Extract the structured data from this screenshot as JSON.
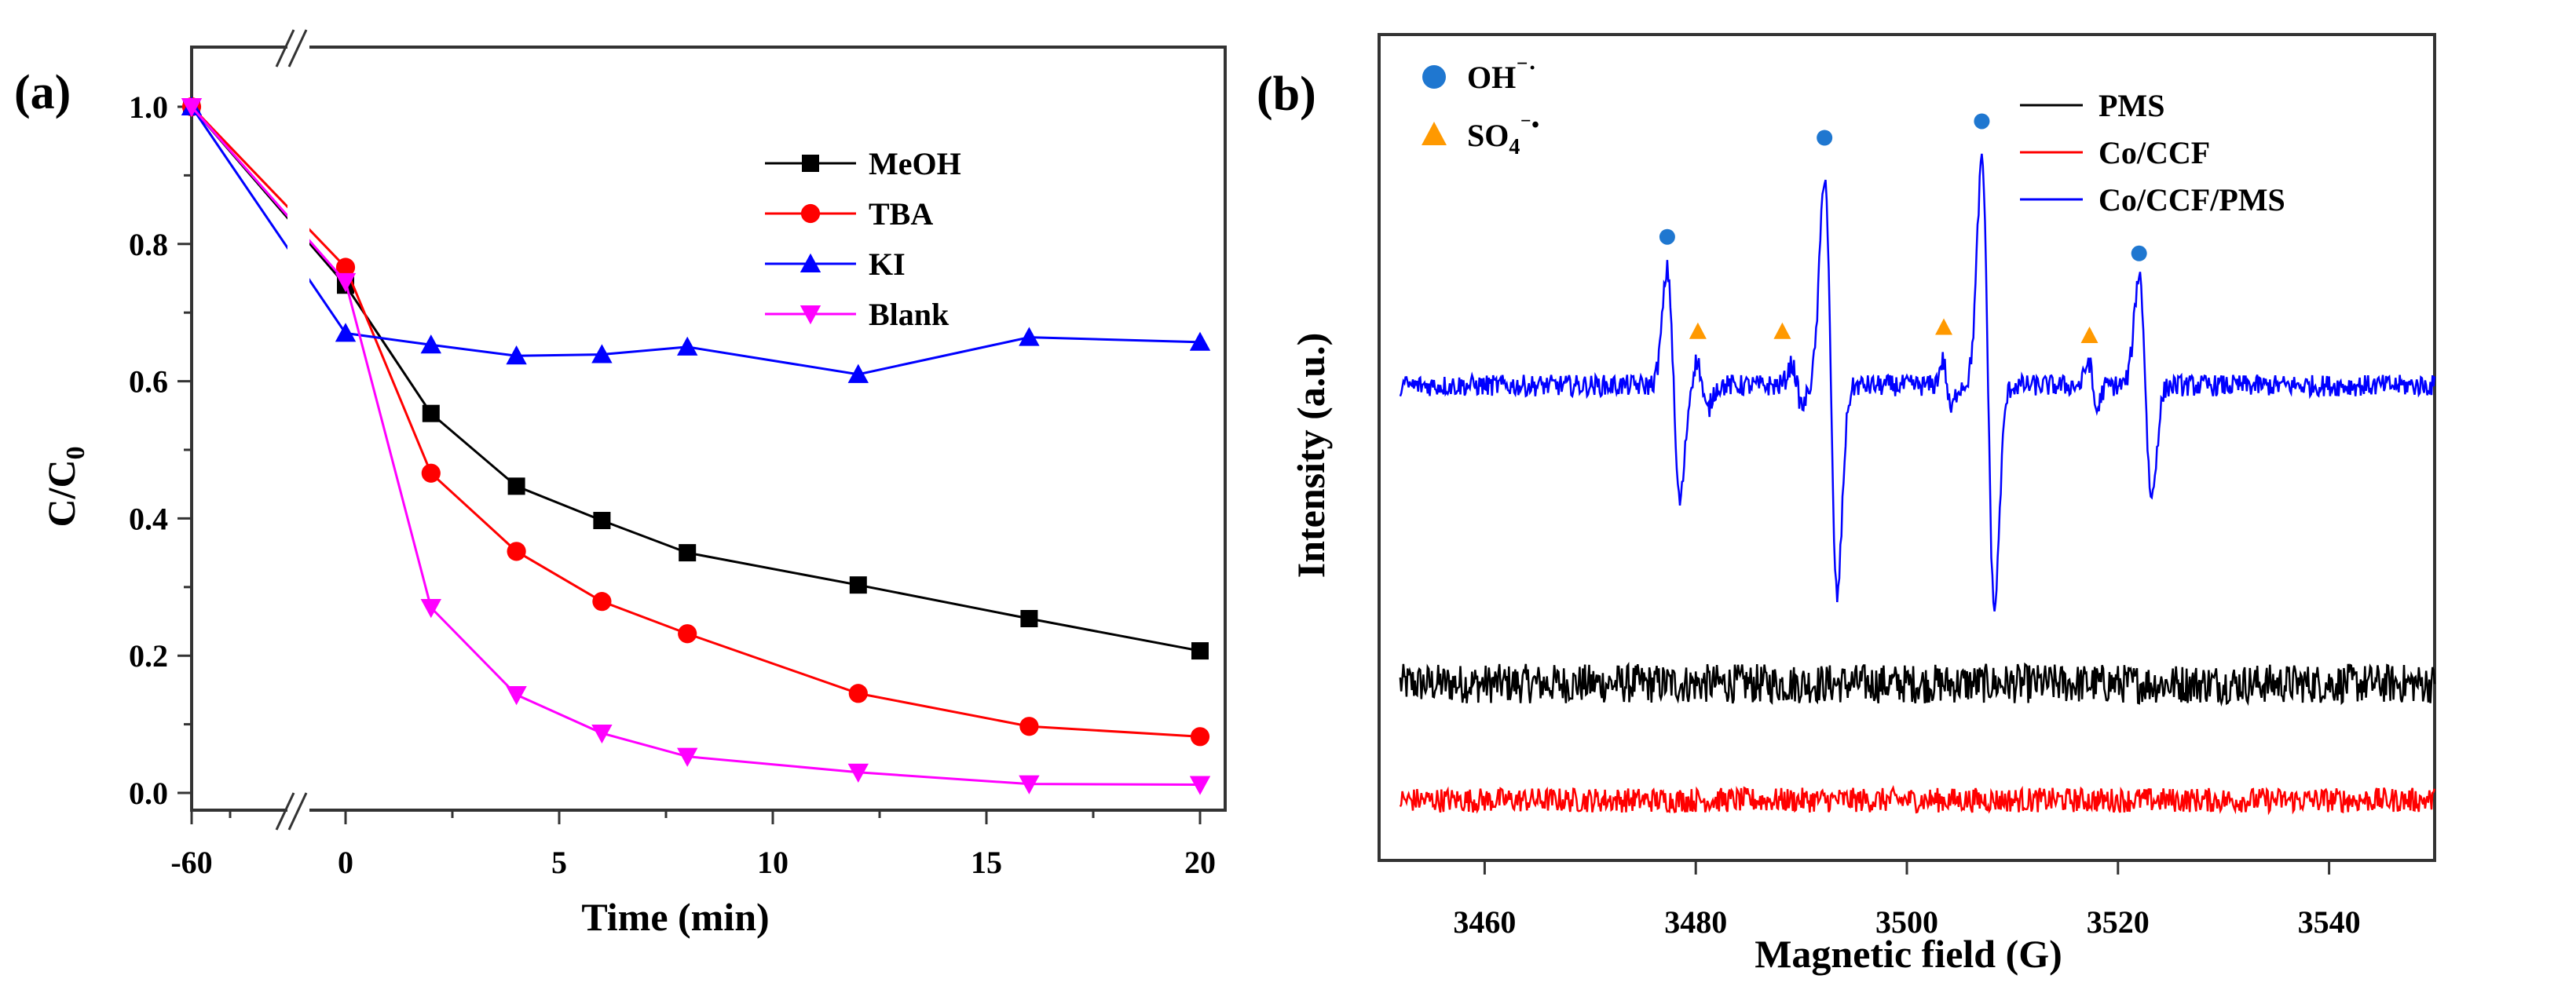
{
  "chart_data": [
    {
      "type": "line",
      "panel_label": "(a)",
      "xlabel": "Time (min)",
      "ylabel_main": "C/C",
      "ylabel_sub": "0",
      "x_ticks": [
        "-60",
        "0",
        "5",
        "10",
        "15",
        "20"
      ],
      "x_tick_values": [
        -60,
        0,
        5,
        10,
        15,
        20
      ],
      "y_ticks": [
        "0.0",
        "0.2",
        "0.4",
        "0.6",
        "0.8",
        "1.0"
      ],
      "y_tick_values": [
        0,
        0.2,
        0.4,
        0.6,
        0.8,
        1.0
      ],
      "xlim": [
        -60,
        20
      ],
      "x_axis_break": [
        -60,
        0
      ],
      "ylim": [
        -0.025,
        1.09
      ],
      "legend_position": "top-right",
      "x": [
        -60,
        0,
        2,
        4,
        6,
        8,
        12,
        16,
        20
      ],
      "series": [
        {
          "name": "MeOH",
          "color": "#000000",
          "marker": "square",
          "values": [
            1.0,
            0.74,
            0.553,
            0.447,
            0.397,
            0.35,
            0.303,
            0.254,
            0.207
          ]
        },
        {
          "name": "TBA",
          "color": "#ff0000",
          "marker": "circle",
          "values": [
            1.0,
            0.766,
            0.466,
            0.352,
            0.279,
            0.232,
            0.145,
            0.097,
            0.082
          ]
        },
        {
          "name": "KI",
          "color": "#0000ff",
          "marker": "triangle-up",
          "values": [
            1.0,
            0.67,
            0.653,
            0.637,
            0.639,
            0.65,
            0.61,
            0.664,
            0.657
          ]
        },
        {
          "name": "Blank",
          "color": "#ff00ff",
          "marker": "triangle-down",
          "values": [
            1.0,
            0.745,
            0.27,
            0.143,
            0.087,
            0.053,
            0.03,
            0.013,
            0.012
          ]
        }
      ]
    },
    {
      "type": "line",
      "panel_label": "(b)",
      "xlabel": "Magnetic field (G)",
      "ylabel": "Intensity (a.u.)",
      "x_ticks": [
        "3460",
        "3480",
        "3500",
        "3520",
        "3540"
      ],
      "x_tick_values": [
        3460,
        3480,
        3500,
        3520,
        3540
      ],
      "xlim": [
        3450,
        3550
      ],
      "ylim": [
        0,
        100
      ],
      "y_ticks_shown": false,
      "legend_position": "top-right",
      "symbol_legend": [
        {
          "label": "OH",
          "sup": "⁻·",
          "marker": "circle",
          "color": "#1f77d0"
        },
        {
          "label": "SO",
          "sub": "4",
          "sup": "⁻•",
          "marker": "triangle",
          "color": "#ff9900"
        }
      ],
      "series": [
        {
          "name": "PMS",
          "color": "#000000",
          "baseline": 21.4,
          "noise": 2.4,
          "peaks": []
        },
        {
          "name": "Co/CCF",
          "color": "#ff0000",
          "baseline": 7.3,
          "noise": 1.5,
          "peaks": []
        },
        {
          "name": "Co/CCF/PMS",
          "color": "#0000ff",
          "baseline": 57.5,
          "noise": 1.3,
          "peaks": [
            {
              "center": 3477.9,
              "amplitude": 14,
              "width": 0.6
            },
            {
              "center": 3492.8,
              "amplitude": 25.5,
              "width": 0.6
            },
            {
              "center": 3507.7,
              "amplitude": 27,
              "width": 0.6
            },
            {
              "center": 3522.6,
              "amplitude": 13.5,
              "width": 0.6
            }
          ],
          "minor_peaks": [
            {
              "center": 3480.6,
              "amplitude": 3,
              "width": 0.5
            },
            {
              "center": 3489.6,
              "amplitude": 2.5,
              "width": 0.5
            },
            {
              "center": 3503.8,
              "amplitude": 3,
              "width": 0.4
            },
            {
              "center": 3517.6,
              "amplitude": 3,
              "width": 0.4
            }
          ]
        }
      ],
      "oh_markers": [
        {
          "x": 3477.3,
          "y": 75.5
        },
        {
          "x": 3492.2,
          "y": 87.5
        },
        {
          "x": 3507.1,
          "y": 89.5
        },
        {
          "x": 3522.0,
          "y": 73.5
        }
      ],
      "so4_markers": [
        {
          "x": 3480.2,
          "y": 64
        },
        {
          "x": 3488.2,
          "y": 64
        },
        {
          "x": 3503.5,
          "y": 64.5
        },
        {
          "x": 3517.3,
          "y": 63.5
        }
      ]
    }
  ]
}
